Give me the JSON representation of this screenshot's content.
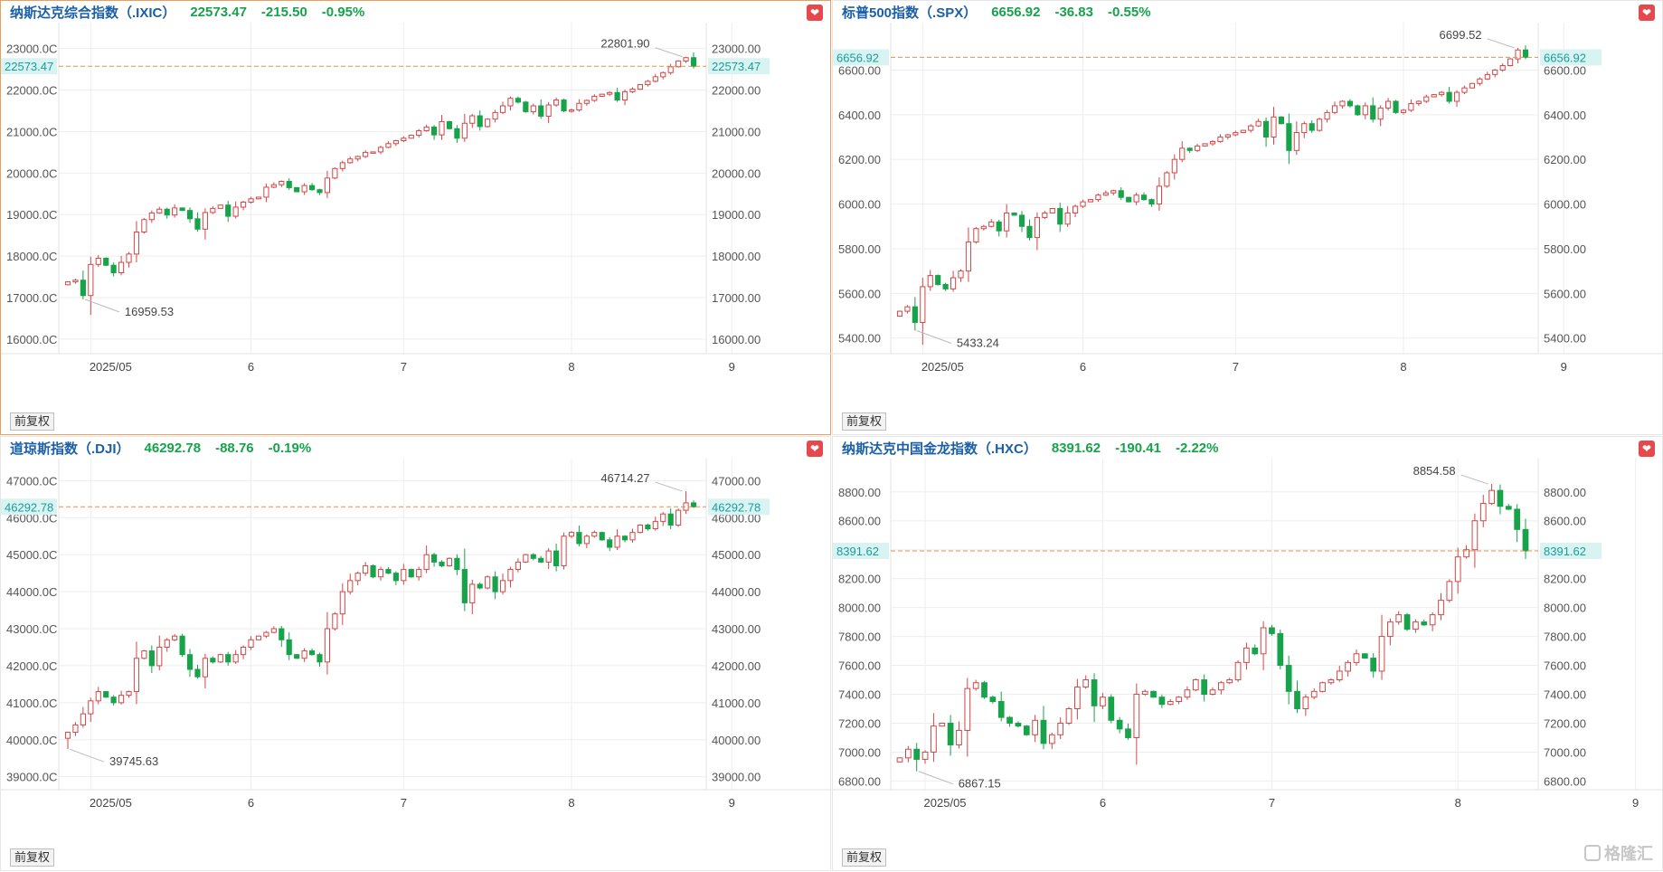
{
  "adj_label": "前复权",
  "watermark": "格隆汇",
  "icons": {
    "favorite": "heart-icon",
    "watermark": "glh-logo-icon"
  },
  "colors": {
    "up": "#d64545",
    "down": "#16a34a",
    "title": "#1a5fa8",
    "dash": "#e8904a",
    "badge_bg": "#d8f3f1",
    "badge_fg": "#1a9d9b"
  },
  "panels": [
    {
      "title": "纳斯达克综合指数（.IXIC）",
      "price": "22573.47",
      "change": "-215.50",
      "pct": "-0.95%",
      "current_label": "22573.47",
      "high_label": "22801.90",
      "low_label": "16959.53"
    },
    {
      "title": "标普500指数（.SPX）",
      "price": "6656.92",
      "change": "-36.83",
      "pct": "-0.55%",
      "current_label": "6656.92",
      "high_label": "6699.52",
      "low_label": "5433.24"
    },
    {
      "title": "道琼斯指数（.DJI）",
      "price": "46292.78",
      "change": "-88.76",
      "pct": "-0.19%",
      "current_label": "46292.78",
      "high_label": "46714.27",
      "low_label": "39745.63"
    },
    {
      "title": "纳斯达克中国金龙指数（.HXC）",
      "price": "8391.62",
      "change": "-190.41",
      "pct": "-2.22%",
      "current_label": "8391.62",
      "high_label": "8854.58",
      "low_label": "6867.15"
    }
  ],
  "chart_data": [
    {
      "type": "candlestick",
      "series_name": "纳斯达克综合指数（.IXIC）",
      "x_tick_labels": [
        "2025/05",
        "6",
        "7",
        "8",
        "9"
      ],
      "x_tick_index": [
        3,
        24,
        44,
        66,
        87
      ],
      "y_ticks": [
        16000,
        17000,
        18000,
        19000,
        20000,
        21000,
        22000,
        23000
      ],
      "y_tick_labels_left": [
        "16000.0C",
        "17000.0C",
        "18000.0C",
        "19000.0C",
        "20000.0C",
        "21000.0C",
        "22000.0C",
        "23000.0C"
      ],
      "y_tick_labels_right": [
        "16000.00",
        "17000.00",
        "18000.00",
        "19000.00",
        "20000.00",
        "21000.00",
        "22000.00",
        "23000.00"
      ],
      "ylim": [
        15650,
        23450
      ],
      "current": 22573.47,
      "high": 22801.9,
      "low": 16959.53,
      "closes": [
        17380,
        17420,
        17050,
        17800,
        17950,
        17780,
        17600,
        17850,
        18050,
        18580,
        18880,
        19040,
        19130,
        18990,
        19160,
        19100,
        18900,
        18650,
        19050,
        19150,
        19230,
        18960,
        19180,
        19300,
        19380,
        19420,
        19660,
        19720,
        19800,
        19650,
        19550,
        19700,
        19600,
        19530,
        19880,
        20110,
        20250,
        20340,
        20400,
        20500,
        20510,
        20620,
        20710,
        20780,
        20840,
        20910,
        21020,
        21110,
        20920,
        21240,
        21070,
        20840,
        21200,
        21380,
        21120,
        21300,
        21460,
        21620,
        21800,
        21710,
        21480,
        21620,
        21370,
        21640,
        21760,
        21500,
        21520,
        21680,
        21750,
        21850,
        21900,
        21940,
        21760,
        21960,
        22020,
        22130,
        22210,
        22320,
        22420,
        22560,
        22700,
        22780,
        22573.47
      ]
    },
    {
      "type": "candlestick",
      "series_name": "标普500指数（.SPX）",
      "x_tick_labels": [
        "2025/05",
        "6",
        "7",
        "8",
        "9"
      ],
      "x_tick_index": [
        3,
        24,
        44,
        66,
        87
      ],
      "y_ticks": [
        5400,
        5600,
        5800,
        6000,
        6200,
        6400,
        6600
      ],
      "y_tick_labels_left": [
        "5400.00",
        "5600.00",
        "5800.00",
        "6000.00",
        "6200.00",
        "6400.00",
        "6600.00"
      ],
      "y_tick_labels_right": [
        "5400.00",
        "5600.00",
        "5800.00",
        "6000.00",
        "6200.00",
        "6400.00",
        "6600.00"
      ],
      "ylim": [
        5330,
        6780
      ],
      "current": 6656.92,
      "high": 6699.52,
      "low": 5433.24,
      "closes": [
        5520,
        5540,
        5470,
        5630,
        5680,
        5640,
        5620,
        5670,
        5700,
        5830,
        5890,
        5900,
        5920,
        5880,
        5960,
        5950,
        5900,
        5850,
        5940,
        5960,
        5980,
        5910,
        5960,
        5990,
        6010,
        6020,
        6040,
        6050,
        6060,
        6030,
        6010,
        6040,
        6020,
        6000,
        6080,
        6140,
        6200,
        6250,
        6240,
        6260,
        6270,
        6280,
        6300,
        6310,
        6320,
        6330,
        6350,
        6370,
        6300,
        6390,
        6360,
        6240,
        6320,
        6360,
        6330,
        6380,
        6410,
        6440,
        6460,
        6440,
        6400,
        6440,
        6380,
        6430,
        6460,
        6410,
        6420,
        6450,
        6460,
        6480,
        6490,
        6500,
        6460,
        6500,
        6520,
        6540,
        6560,
        6580,
        6600,
        6620,
        6650,
        6690,
        6656.92
      ]
    },
    {
      "type": "candlestick",
      "series_name": "道琼斯指数（.DJI）",
      "x_tick_labels": [
        "2025/05",
        "6",
        "7",
        "8",
        "9"
      ],
      "x_tick_index": [
        3,
        24,
        44,
        66,
        87
      ],
      "y_ticks": [
        39000,
        40000,
        41000,
        42000,
        43000,
        44000,
        45000,
        46000,
        47000
      ],
      "y_tick_labels_left": [
        "39000.0C",
        "40000.0C",
        "41000.0C",
        "42000.0C",
        "43000.0C",
        "44000.0C",
        "45000.0C",
        "46000.0C",
        "47000.0C"
      ],
      "y_tick_labels_right": [
        "39000.00",
        "40000.00",
        "41000.00",
        "42000.00",
        "43000.00",
        "44000.00",
        "45000.00",
        "46000.00",
        "47000.00"
      ],
      "ylim": [
        38650,
        47400
      ],
      "current": 46292.78,
      "high": 46714.27,
      "low": 39745.63,
      "closes": [
        40200,
        40400,
        40700,
        41050,
        41300,
        41150,
        41000,
        41200,
        41300,
        42200,
        42400,
        42000,
        42500,
        42700,
        42800,
        42300,
        41900,
        41700,
        42200,
        42100,
        42300,
        42100,
        42300,
        42500,
        42700,
        42800,
        42900,
        43000,
        42700,
        42300,
        42200,
        42400,
        42300,
        42100,
        43000,
        43400,
        44000,
        44300,
        44500,
        44700,
        44400,
        44600,
        44500,
        44300,
        44600,
        44400,
        44600,
        45000,
        44800,
        44700,
        44900,
        44600,
        43700,
        44200,
        44100,
        44400,
        44000,
        44300,
        44600,
        44800,
        45000,
        44900,
        44800,
        45100,
        44700,
        45500,
        45600,
        45300,
        45500,
        45600,
        45400,
        45200,
        45500,
        45400,
        45600,
        45800,
        45700,
        45900,
        46100,
        45800,
        46200,
        46400,
        46292.78
      ]
    },
    {
      "type": "candlestick",
      "series_name": "纳斯达克中国金龙指数（.HXC）",
      "x_tick_labels": [
        "2025/05",
        "6",
        "7",
        "8",
        "9"
      ],
      "x_tick_index": [
        3,
        24,
        44,
        66,
        87
      ],
      "y_ticks": [
        6800,
        7000,
        7200,
        7400,
        7600,
        7800,
        8000,
        8200,
        8400,
        8600,
        8800
      ],
      "y_tick_labels_left": [
        "6800.00",
        "7000.00",
        "7200.00",
        "7400.00",
        "7600.00",
        "7800.00",
        "8000.00",
        "8200.00",
        "8400.00",
        "8600.00",
        "8800.00"
      ],
      "y_tick_labels_right": [
        "6800.00",
        "7000.00",
        "7200.00",
        "7400.00",
        "7600.00",
        "7800.00",
        "8000.00",
        "8200.00",
        "8400.00",
        "8600.00",
        "8800.00"
      ],
      "ylim": [
        6740,
        8980
      ],
      "current": 8391.62,
      "high": 8854.58,
      "low": 6867.15,
      "closes": [
        6960,
        7020,
        6950,
        7000,
        7180,
        7200,
        7050,
        7150,
        7440,
        7480,
        7380,
        7350,
        7240,
        7200,
        7180,
        7120,
        7220,
        7060,
        7120,
        7200,
        7300,
        7450,
        7500,
        7320,
        7380,
        7220,
        7160,
        7100,
        7400,
        7420,
        7380,
        7330,
        7350,
        7380,
        7430,
        7500,
        7400,
        7430,
        7480,
        7500,
        7620,
        7720,
        7680,
        7860,
        7820,
        7600,
        7420,
        7300,
        7380,
        7420,
        7480,
        7500,
        7560,
        7620,
        7680,
        7650,
        7560,
        7800,
        7900,
        7950,
        7850,
        7900,
        7880,
        7950,
        8050,
        8180,
        8350,
        8400,
        8600,
        8720,
        8810,
        8700,
        8680,
        8540,
        8391.62
      ]
    }
  ]
}
